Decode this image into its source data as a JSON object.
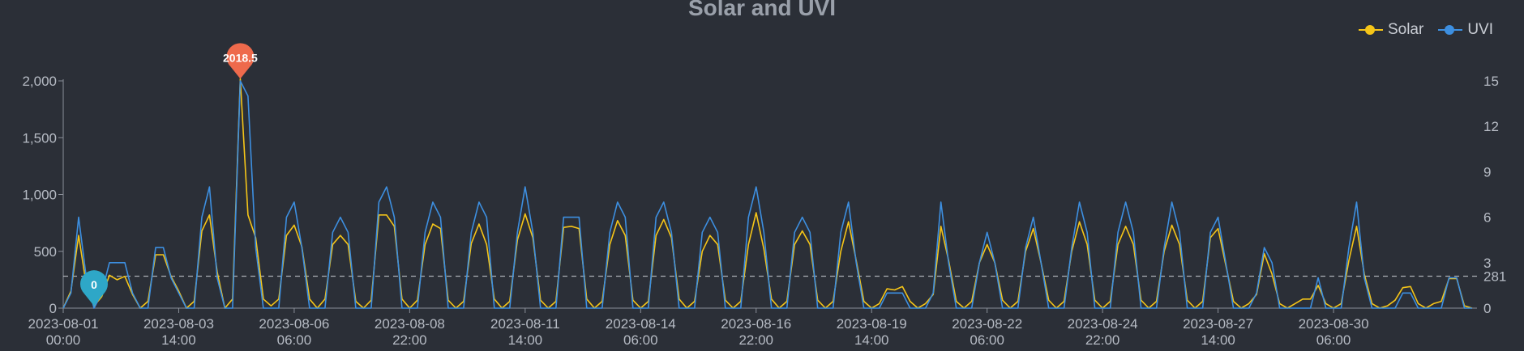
{
  "chart_data": {
    "type": "line",
    "title": "Solar and UVI",
    "legend_position": "top-right",
    "x_tick_labels": [
      [
        "2023-08-01",
        "00:00"
      ],
      [
        "2023-08-03",
        "14:00"
      ],
      [
        "2023-08-06",
        "06:00"
      ],
      [
        "2023-08-08",
        "22:00"
      ],
      [
        "2023-08-11",
        "14:00"
      ],
      [
        "2023-08-14",
        "06:00"
      ],
      [
        "2023-08-16",
        "22:00"
      ],
      [
        "2023-08-19",
        "14:00"
      ],
      [
        "2023-08-22",
        "06:00"
      ],
      [
        "2023-08-24",
        "22:00"
      ],
      [
        "2023-08-27",
        "14:00"
      ],
      [
        "2023-08-30",
        "06:00"
      ]
    ],
    "y_left": {
      "ticks": [
        "0",
        "500",
        "1,000",
        "1,500",
        "2,000"
      ],
      "ylim": [
        0,
        2000
      ]
    },
    "y_right": {
      "ticks": [
        "0",
        "3",
        "6",
        "9",
        "12",
        "15"
      ],
      "ylim": [
        0,
        15
      ]
    },
    "series": [
      {
        "name": "Solar",
        "axis": "left",
        "color": "#f5c518",
        "values": [
          0,
          150,
          640,
          200,
          20,
          100,
          290,
          250,
          280,
          120,
          0,
          60,
          470,
          470,
          280,
          150,
          0,
          60,
          680,
          820,
          320,
          0,
          80,
          2018.5,
          820,
          620,
          80,
          20,
          80,
          640,
          730,
          540,
          80,
          0,
          80,
          560,
          640,
          560,
          60,
          0,
          70,
          820,
          820,
          720,
          80,
          0,
          70,
          560,
          740,
          700,
          70,
          0,
          60,
          570,
          740,
          560,
          80,
          0,
          60,
          600,
          830,
          620,
          70,
          0,
          60,
          710,
          720,
          700,
          80,
          0,
          60,
          560,
          770,
          640,
          70,
          0,
          60,
          640,
          780,
          620,
          80,
          0,
          60,
          500,
          640,
          560,
          70,
          0,
          60,
          560,
          840,
          520,
          80,
          0,
          60,
          560,
          680,
          560,
          70,
          0,
          60,
          500,
          760,
          420,
          60,
          0,
          40,
          170,
          160,
          190,
          60,
          0,
          40,
          120,
          720,
          420,
          60,
          0,
          60,
          400,
          560,
          400,
          70,
          0,
          60,
          500,
          700,
          400,
          70,
          0,
          60,
          500,
          760,
          560,
          70,
          0,
          60,
          560,
          720,
          560,
          70,
          0,
          60,
          500,
          730,
          560,
          70,
          0,
          60,
          620,
          700,
          380,
          60,
          0,
          40,
          120,
          480,
          300,
          40,
          0,
          40,
          80,
          80,
          200,
          40,
          0,
          40,
          420,
          720,
          300,
          40,
          0,
          20,
          70,
          180,
          190,
          40,
          0,
          40,
          60,
          260,
          260,
          20,
          0
        ]
      },
      {
        "name": "UVI",
        "axis": "right",
        "color": "#3d8fe0",
        "values": [
          0,
          1,
          6,
          2,
          0,
          1,
          3,
          3,
          3,
          1,
          0,
          0,
          4,
          4,
          2,
          1,
          0,
          0,
          6,
          8,
          2,
          0,
          0,
          15,
          14,
          4,
          0,
          0,
          0,
          6,
          7,
          4,
          0,
          0,
          0,
          5,
          6,
          5,
          0,
          0,
          0,
          7,
          8,
          6,
          0,
          0,
          0,
          5,
          7,
          6,
          0,
          0,
          0,
          5,
          7,
          6,
          0,
          0,
          0,
          5,
          8,
          5,
          0,
          0,
          0,
          6,
          6,
          6,
          0,
          0,
          0,
          5,
          7,
          6,
          0,
          0,
          0,
          6,
          7,
          5,
          0,
          0,
          0,
          5,
          6,
          5,
          0,
          0,
          0,
          6,
          8,
          5,
          0,
          0,
          0,
          5,
          6,
          5,
          0,
          0,
          0,
          5,
          7,
          3,
          0,
          0,
          0,
          1,
          1,
          1,
          0,
          0,
          0,
          1,
          7,
          3,
          0,
          0,
          0,
          3,
          5,
          3,
          0,
          0,
          0,
          4,
          6,
          3,
          0,
          0,
          0,
          4,
          7,
          5,
          0,
          0,
          0,
          5,
          7,
          5,
          0,
          0,
          0,
          4,
          7,
          5,
          0,
          0,
          0,
          5,
          6,
          3,
          0,
          0,
          0,
          1,
          4,
          3,
          0,
          0,
          0,
          0,
          0,
          2,
          0,
          0,
          0,
          4,
          7,
          2,
          0,
          0,
          0,
          0,
          1,
          1,
          0,
          0,
          0,
          0,
          2,
          2,
          0,
          0
        ]
      }
    ],
    "mark_points": [
      {
        "series": "Solar",
        "kind": "max",
        "label": "2018.5",
        "color": "#ee6a4c",
        "index": 23
      },
      {
        "series": "Solar",
        "kind": "min",
        "label": "0",
        "color": "#2ea7c7",
        "index": 4
      }
    ],
    "mark_line": {
      "label": "281",
      "value": 281,
      "axis": "left",
      "style": "dashed"
    }
  }
}
